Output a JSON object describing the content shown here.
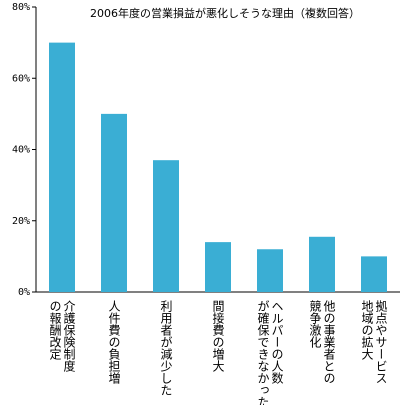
{
  "chart_data": {
    "type": "bar",
    "title": "2006年度の営業損益が悪化しそうな理由（複数回答）",
    "xlabel": "",
    "ylabel": "",
    "ylim": [
      0,
      80
    ],
    "yticks": [
      "0%",
      "20%",
      "40%",
      "60%",
      "80%"
    ],
    "grid": false,
    "bar_color": "#3aaed4",
    "categories": [
      [
        "介護保険制度",
        "の報酬改定"
      ],
      [
        "人件費の負担増"
      ],
      [
        "利用者が減少した"
      ],
      [
        "間接費の増大"
      ],
      [
        "ヘルパーの人数",
        "が確保できなかった"
      ],
      [
        "他の事業者との",
        "競争激化"
      ],
      [
        "拠点やサービス",
        "地域の拡大"
      ]
    ],
    "values": [
      70,
      50,
      37,
      14,
      12,
      15.5,
      10
    ]
  }
}
